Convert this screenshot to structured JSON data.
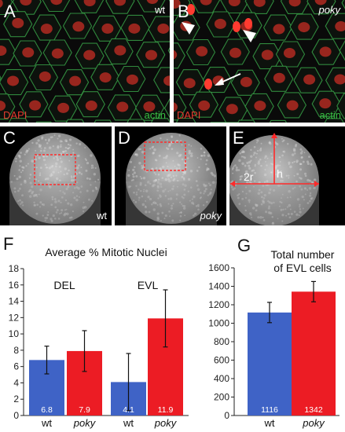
{
  "panels": {
    "A": {
      "letter": "A",
      "condition": "wt",
      "stain1": "DAPI",
      "stain2": "actin"
    },
    "B": {
      "letter": "B",
      "condition": "poky",
      "stain1": "DAPI",
      "stain2": "actin"
    },
    "C": {
      "letter": "C",
      "condition": "wt"
    },
    "D": {
      "letter": "D",
      "condition": "poky"
    },
    "E": {
      "letter": "E",
      "height_label": "h",
      "radius_label": "2r"
    }
  },
  "colors": {
    "wt": "#3f63c6",
    "poky": "#ec1c24",
    "dapi": "#e23a2e",
    "actin": "#38c043"
  },
  "chart_data": [
    {
      "letter": "F",
      "type": "bar",
      "title": "Average % Mitotic Nuclei",
      "ylim": [
        0,
        18
      ],
      "yticks": [
        0,
        2,
        4,
        6,
        8,
        10,
        12,
        14,
        16,
        18
      ],
      "groups": [
        {
          "name": "DEL",
          "categories": [
            "wt",
            "poky"
          ],
          "values": [
            6.8,
            7.9
          ],
          "errors": [
            1.7,
            2.5
          ],
          "value_labels": [
            "6.8",
            "7.9"
          ]
        },
        {
          "name": "EVL",
          "categories": [
            "wt",
            "poky"
          ],
          "values": [
            4.1,
            11.9
          ],
          "errors": [
            3.5,
            3.5
          ],
          "value_labels": [
            "4.1",
            "11.9"
          ]
        }
      ]
    },
    {
      "letter": "G",
      "type": "bar",
      "title_lines": [
        "Total number",
        "of EVL cells"
      ],
      "ylim": [
        0,
        1600
      ],
      "yticks": [
        0,
        200,
        400,
        600,
        800,
        1000,
        1200,
        1400,
        1600
      ],
      "categories": [
        "wt",
        "poky"
      ],
      "values": [
        1116,
        1342
      ],
      "errors": [
        110,
        110
      ],
      "value_labels": [
        "1116",
        "1342"
      ]
    }
  ]
}
